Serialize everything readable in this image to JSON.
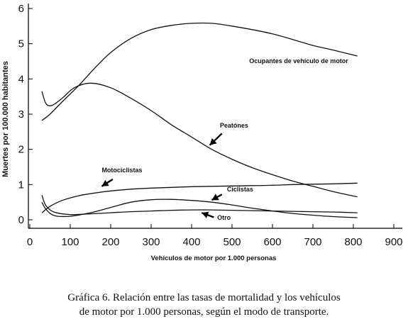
{
  "chart_data": {
    "type": "line",
    "ylabel": "Muertes por 100.000 habitantes",
    "xlabel": "Vehículos de motor por 1.000 personas",
    "xlim": [
      0,
      900
    ],
    "ylim": [
      0,
      6
    ],
    "xticks": [
      0,
      100,
      200,
      300,
      400,
      500,
      600,
      700,
      800,
      900
    ],
    "yticks": [
      0,
      1,
      2,
      3,
      4,
      5,
      6
    ],
    "grid": false,
    "series": [
      {
        "name": "Ocupantes de vehículo de motor",
        "x": [
          30,
          50,
          80,
          120,
          160,
          200,
          250,
          300,
          350,
          400,
          450,
          500,
          550,
          600,
          650,
          700,
          750,
          810
        ],
        "y": [
          2.82,
          3.0,
          3.35,
          3.8,
          4.3,
          4.75,
          5.15,
          5.4,
          5.52,
          5.58,
          5.58,
          5.5,
          5.4,
          5.28,
          5.12,
          4.95,
          4.82,
          4.65
        ]
      },
      {
        "name": "Peatónes",
        "x": [
          30,
          40,
          55,
          80,
          110,
          150,
          200,
          250,
          300,
          350,
          400,
          450,
          500,
          550,
          600,
          650,
          700,
          750,
          810
        ],
        "y": [
          3.65,
          3.3,
          3.25,
          3.45,
          3.75,
          3.88,
          3.75,
          3.45,
          3.1,
          2.7,
          2.35,
          2.0,
          1.72,
          1.48,
          1.28,
          1.1,
          0.95,
          0.8,
          0.65
        ]
      },
      {
        "name": "Motociclistas",
        "x": [
          30,
          50,
          80,
          120,
          160,
          200,
          250,
          300,
          350,
          400,
          450,
          500,
          550,
          600,
          650,
          700,
          750,
          810
        ],
        "y": [
          0.2,
          0.38,
          0.55,
          0.68,
          0.76,
          0.82,
          0.87,
          0.9,
          0.92,
          0.94,
          0.95,
          0.96,
          0.97,
          0.98,
          1.0,
          1.01,
          1.02,
          1.04
        ]
      },
      {
        "name": "Ciclistas",
        "x": [
          30,
          40,
          60,
          100,
          150,
          200,
          250,
          300,
          350,
          400,
          450,
          500,
          550,
          600,
          650,
          700,
          750,
          810
        ],
        "y": [
          0.5,
          0.3,
          0.12,
          0.1,
          0.2,
          0.35,
          0.5,
          0.57,
          0.58,
          0.55,
          0.5,
          0.42,
          0.33,
          0.25,
          0.18,
          0.13,
          0.09,
          0.06
        ]
      },
      {
        "name": "Otro",
        "x": [
          30,
          40,
          60,
          100,
          150,
          200,
          250,
          300,
          350,
          400,
          450,
          500,
          550,
          600,
          650,
          700,
          750,
          810
        ],
        "y": [
          0.7,
          0.4,
          0.22,
          0.15,
          0.17,
          0.2,
          0.23,
          0.25,
          0.27,
          0.28,
          0.28,
          0.27,
          0.26,
          0.25,
          0.24,
          0.23,
          0.22,
          0.2
        ]
      }
    ],
    "annotations": [
      {
        "text": "Ocupantes de vehículo de motor",
        "series": "Ocupantes de vehículo de motor",
        "at": [
          665,
          4.45
        ],
        "arrow": false
      },
      {
        "text": "Peatónes",
        "series": "Peatónes",
        "at": [
          505,
          2.62
        ],
        "arrow": true,
        "arrow_from": [
          475,
          2.45
        ],
        "arrow_to": [
          445,
          2.12
        ]
      },
      {
        "text": "Motociclistas",
        "series": "Motociclistas",
        "at": [
          228,
          1.35
        ],
        "arrow": true,
        "arrow_from": [
          205,
          1.15
        ],
        "arrow_to": [
          178,
          0.95
        ]
      },
      {
        "text": "Ciclistas",
        "series": "Ciclistas",
        "at": [
          520,
          0.81
        ],
        "arrow": true,
        "arrow_from": [
          475,
          0.72
        ],
        "arrow_to": [
          450,
          0.56
        ]
      },
      {
        "text": "Otro",
        "series": "Otro",
        "at": [
          480,
          0.0
        ],
        "arrow": true,
        "arrow_from": [
          455,
          0.07
        ],
        "arrow_to": [
          425,
          0.2
        ]
      }
    ]
  },
  "caption": {
    "line1": "Gráfica 6. Relación entre las tasas de mortalidad y los vehículos",
    "line2": "de motor por 1.000 personas, según el modo de transporte."
  }
}
